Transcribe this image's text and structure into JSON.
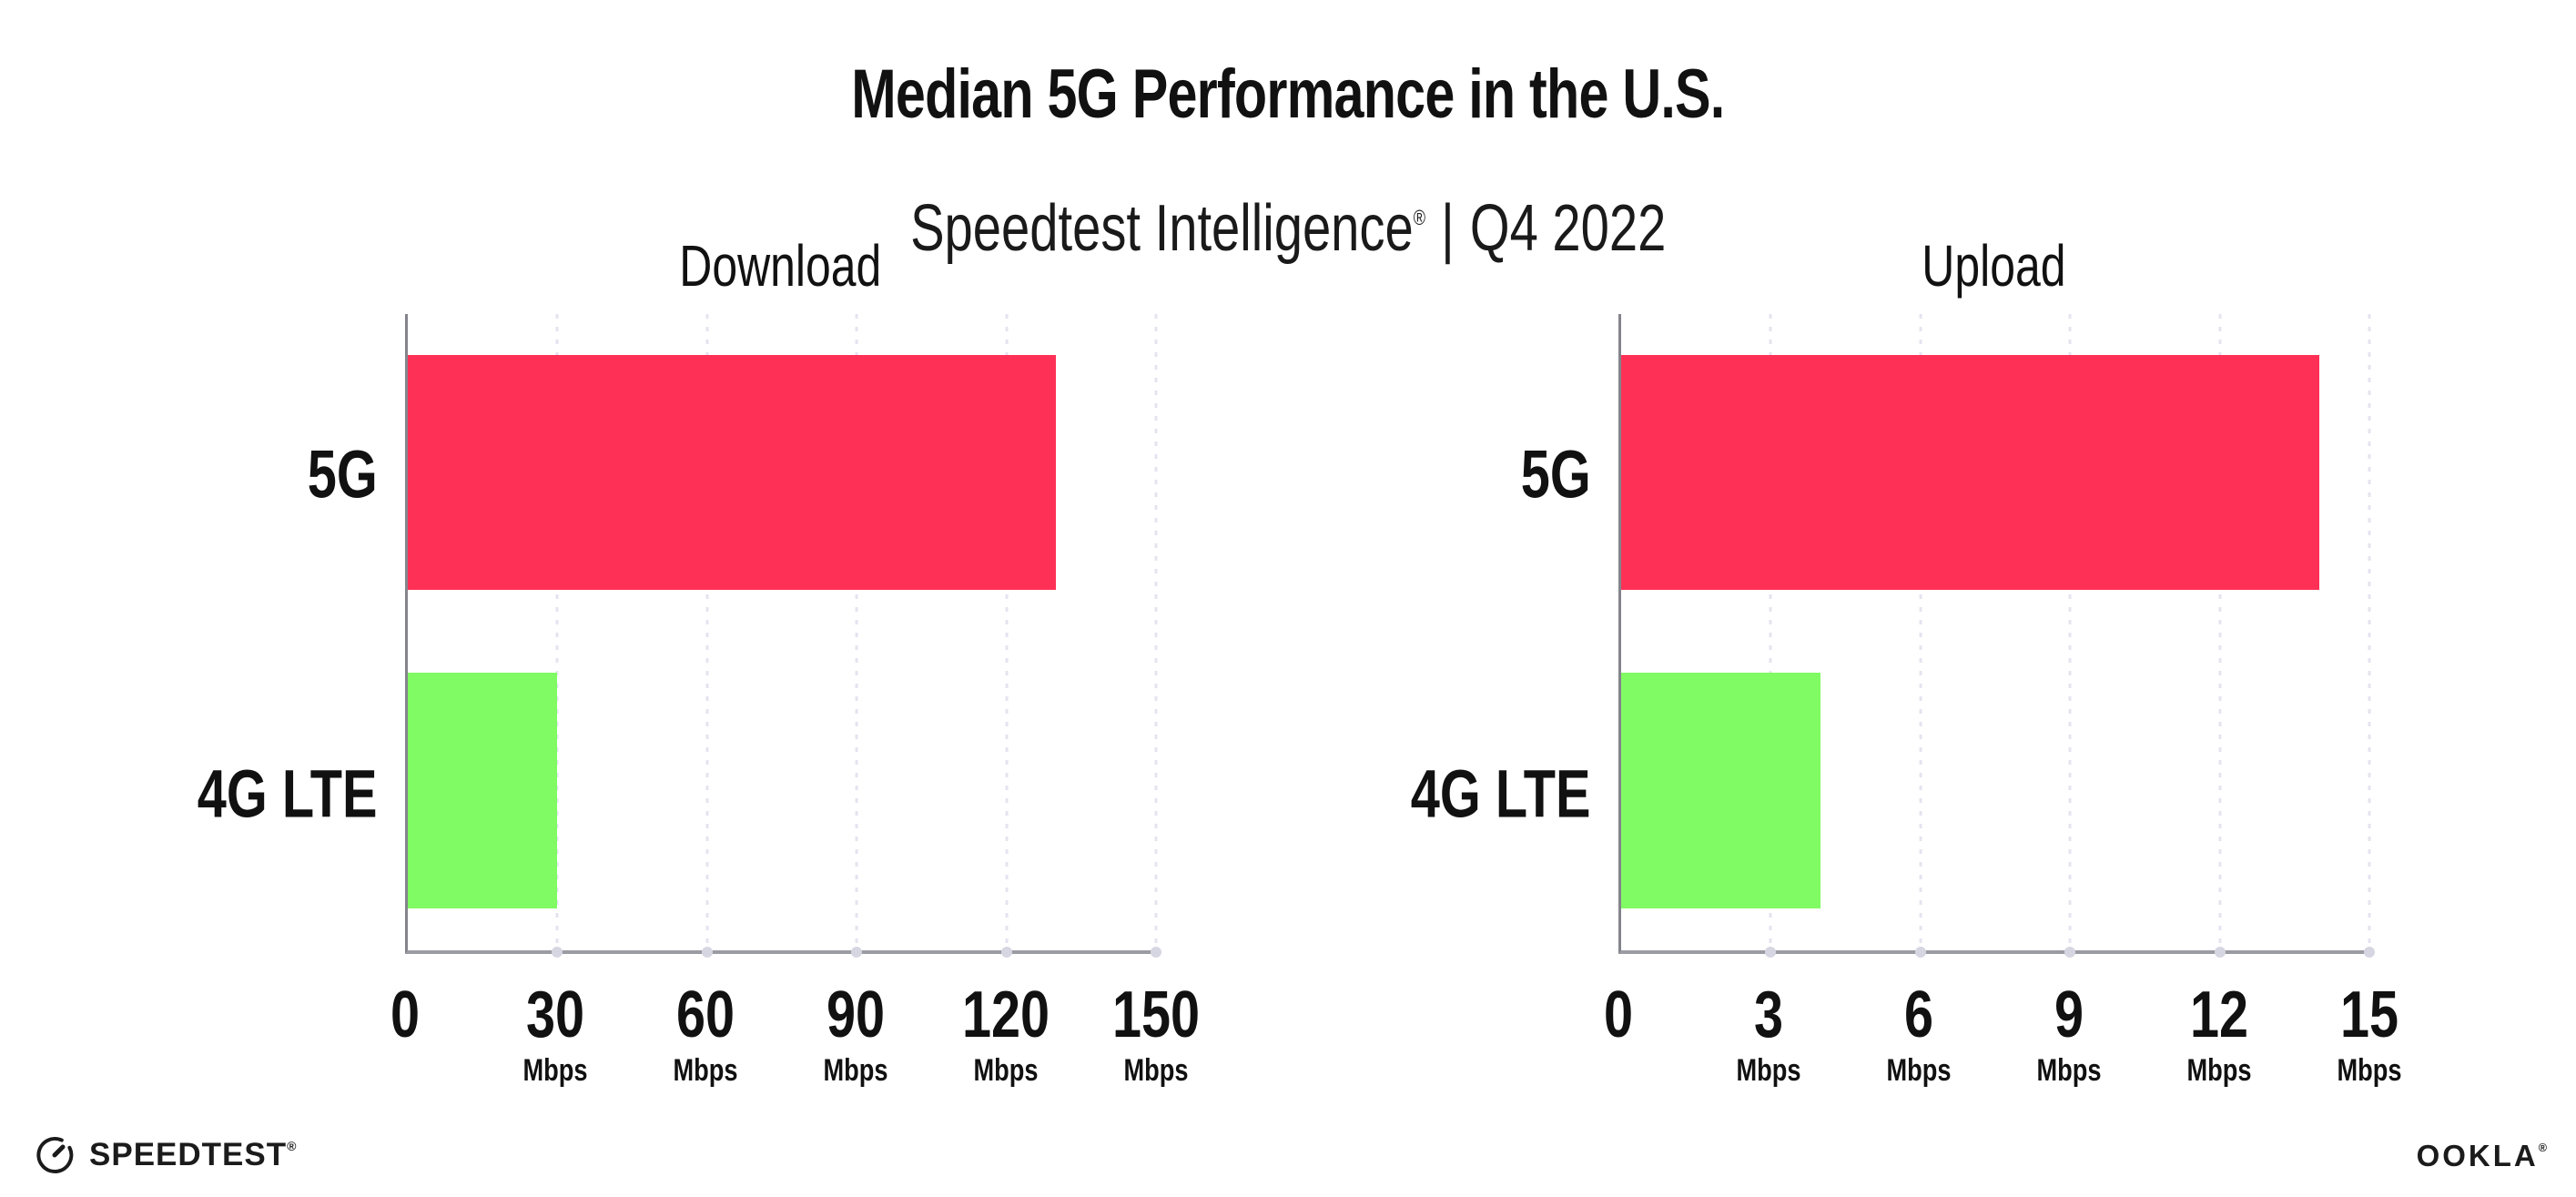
{
  "header": {
    "title": "Median 5G Performance in the U.S.",
    "subtitle": {
      "brand": "Speedtest Intelligence",
      "registered_mark": "®",
      "separator": "|",
      "period": "Q4 2022"
    }
  },
  "chart_data": [
    {
      "type": "bar",
      "orientation": "horizontal",
      "title": "Download",
      "categories": [
        "5G",
        "4G LTE"
      ],
      "values": [
        130,
        30
      ],
      "value_unit": "Mbps",
      "xlim": [
        0,
        150
      ],
      "xticks": [
        0,
        30,
        60,
        90,
        120,
        150
      ],
      "xtick_unit_label": "Mbps",
      "bar_colors": [
        "#FF3056",
        "#80FB63"
      ],
      "grid": "vertical dotted",
      "legend": "none"
    },
    {
      "type": "bar",
      "orientation": "horizontal",
      "title": "Upload",
      "categories": [
        "5G",
        "4G LTE"
      ],
      "values": [
        14,
        4
      ],
      "value_unit": "Mbps",
      "xlim": [
        0,
        15
      ],
      "xticks": [
        0,
        3,
        6,
        9,
        12,
        15
      ],
      "xtick_unit_label": "Mbps",
      "bar_colors": [
        "#FF3056",
        "#80FB63"
      ],
      "grid": "vertical dotted",
      "legend": "none"
    }
  ],
  "footer": {
    "speedtest_logo_text": "SPEEDTEST",
    "speedtest_logo_mark": "®",
    "ookla_logo_text": "OOKLA",
    "ookla_logo_mark": "®"
  },
  "colors": {
    "bar_5g": "#FF3056",
    "bar_4g_lte": "#80FB63",
    "gridline": "#E4E4F0",
    "x_axis": "#9B9BA3",
    "y_axis": "#84848C",
    "text": "#111111"
  }
}
